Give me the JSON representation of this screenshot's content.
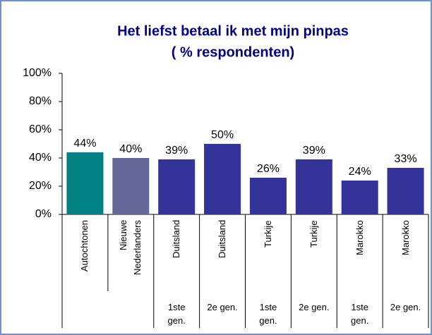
{
  "chart_data": {
    "type": "bar",
    "title": "Het liefst betaal ik met mijn pinpas",
    "subtitle": "( % respondenten)",
    "categories": [
      "Autochtonen",
      "Nieuwe Nederlanders",
      "Duitsland",
      "Duitsland",
      "Turkije",
      "Turkije",
      "Marokko",
      "Marokko"
    ],
    "group_labels": [
      null,
      null,
      "1ste gen.",
      "2e gen.",
      "1ste gen.",
      "2e gen.",
      "1ste gen.",
      "2e gen."
    ],
    "values": [
      44,
      40,
      39,
      50,
      26,
      39,
      24,
      33
    ],
    "value_labels": [
      "44%",
      "40%",
      "39%",
      "50%",
      "26%",
      "39%",
      "24%",
      "33%"
    ],
    "colors": [
      "#008080",
      "#666699",
      "#333399",
      "#333399",
      "#333399",
      "#333399",
      "#333399",
      "#333399"
    ],
    "ylim": [
      0,
      100
    ],
    "yticks": [
      {
        "value": 0,
        "label": "0%"
      },
      {
        "value": 20,
        "label": "20%"
      },
      {
        "value": 40,
        "label": "40%"
      },
      {
        "value": 60,
        "label": "60%"
      },
      {
        "value": 80,
        "label": "80%"
      },
      {
        "value": 100,
        "label": "100%"
      }
    ],
    "grid": false
  }
}
